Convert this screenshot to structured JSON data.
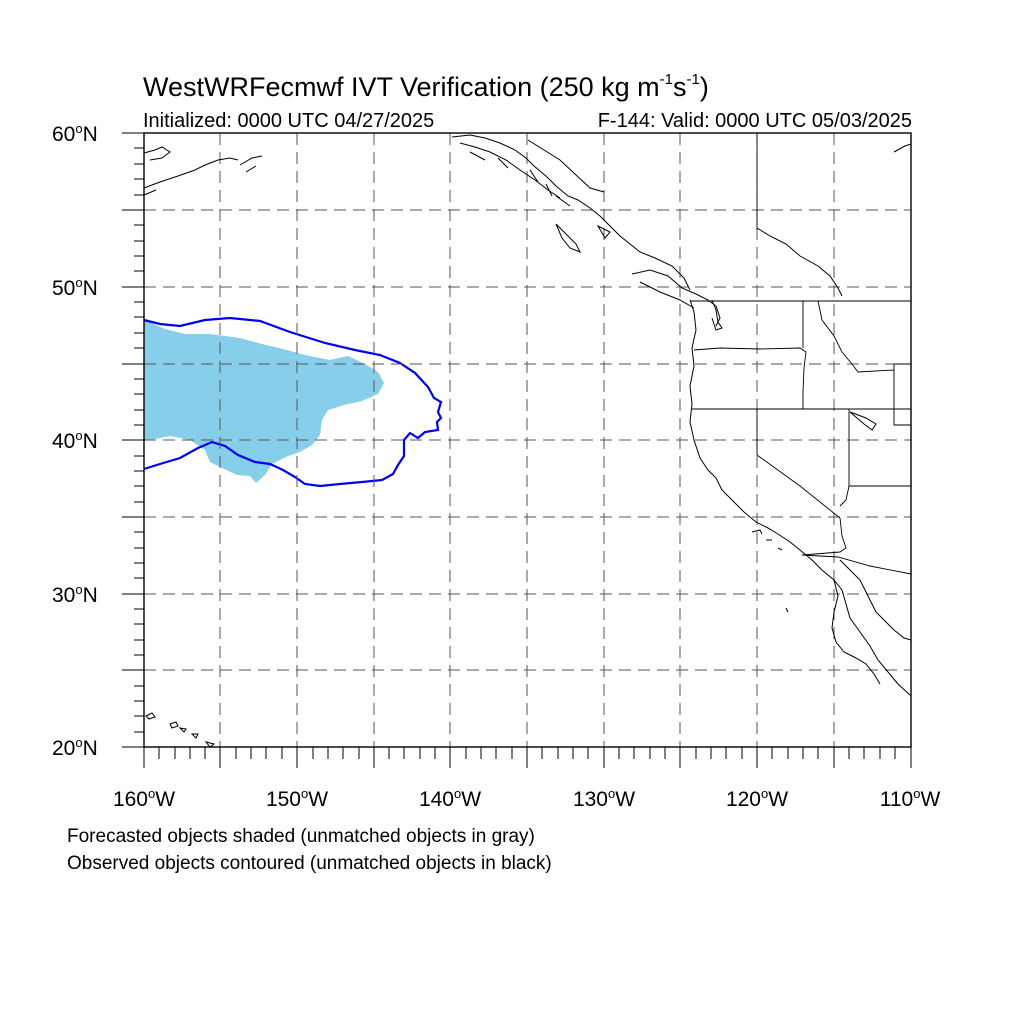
{
  "title": {
    "text_before_1": "WestWRFecmwf IVT Verification (250 kg m",
    "exp1": "-1",
    "text_between": "s",
    "exp2": "-1",
    "text_after": ")"
  },
  "subtitle_left": "Initialized: 0000 UTC 04/27/2025",
  "subtitle_right": "F-144: Valid: 0000 UTC 05/03/2025",
  "y_axis": [
    {
      "value": "60",
      "suffix": "N"
    },
    {
      "value": "50",
      "suffix": "N"
    },
    {
      "value": "40",
      "suffix": "N"
    },
    {
      "value": "30",
      "suffix": "N"
    },
    {
      "value": "20",
      "suffix": "N"
    }
  ],
  "x_axis": [
    {
      "value": "160",
      "suffix": "W"
    },
    {
      "value": "150",
      "suffix": "W"
    },
    {
      "value": "140",
      "suffix": "W"
    },
    {
      "value": "130",
      "suffix": "W"
    },
    {
      "value": "120",
      "suffix": "W"
    },
    {
      "value": "110",
      "suffix": "W"
    }
  ],
  "degree_symbol": "o",
  "notes": [
    "Forecasted objects shaded (unmatched objects in gray)",
    "Observed objects contoured (unmatched objects in black)"
  ],
  "map": {
    "lon_range": [
      -160,
      -110
    ],
    "lat_range": [
      20,
      60
    ],
    "grid": "dashed every 5 degrees",
    "colors": {
      "forecast_shading": "#87ceeb",
      "observed_contour": "#0000ee",
      "coastline": "#000000",
      "grid": "#555555"
    }
  }
}
